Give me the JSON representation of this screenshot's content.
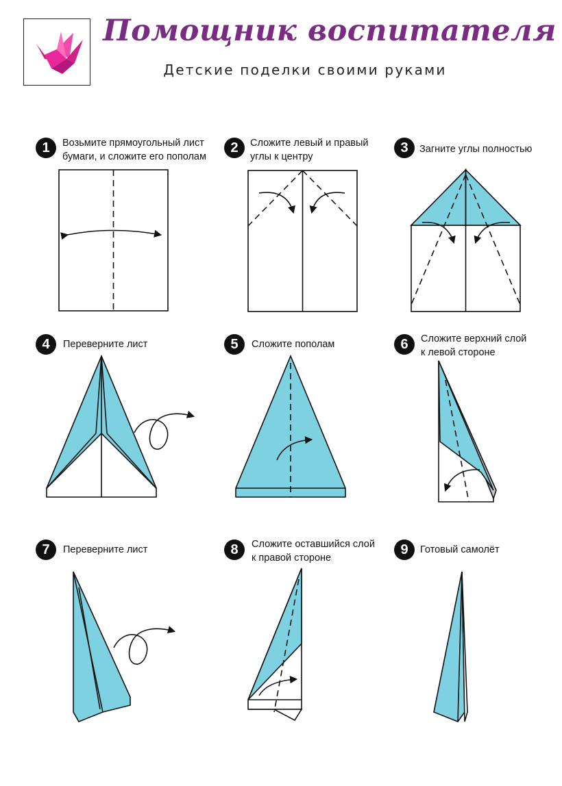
{
  "header": {
    "title": "Помощник воспитателя",
    "subtitle": "Детские поделки своими руками",
    "logo_icon": "origami-crane-icon"
  },
  "colors": {
    "title": "#7a2c83",
    "paper_blue": "#7dd1e1",
    "crane_pink": "#e8279a",
    "outline": "#111111"
  },
  "steps": [
    {
      "number": "1",
      "line1": "Возьмите прямоугольный лист",
      "line2": "бумаги, и сложите его пополам"
    },
    {
      "number": "2",
      "line1": "Сложите левый и правый",
      "line2": "углы к центру"
    },
    {
      "number": "3",
      "line1": "Загните углы полностью",
      "line2": ""
    },
    {
      "number": "4",
      "line1": "Переверните лист",
      "line2": ""
    },
    {
      "number": "5",
      "line1": "Сложите пополам",
      "line2": ""
    },
    {
      "number": "6",
      "line1": "Сложите верхний слой",
      "line2": "к левой стороне"
    },
    {
      "number": "7",
      "line1": "Переверните лист",
      "line2": ""
    },
    {
      "number": "8",
      "line1": "Сложите оставшийся слой",
      "line2": "к правой стороне"
    },
    {
      "number": "9",
      "line1": "Готовый самолёт",
      "line2": ""
    }
  ]
}
